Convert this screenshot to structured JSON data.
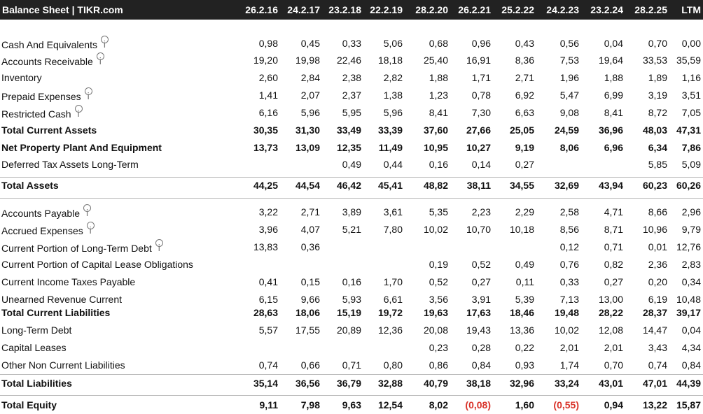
{
  "header": {
    "title": "Balance Sheet | TIKR.com",
    "columns": [
      "26.2.16",
      "24.2.17",
      "23.2.18",
      "22.2.19",
      "28.2.20",
      "26.2.21",
      "25.2.22",
      "24.2.23",
      "23.2.24",
      "28.2.25",
      "LTM"
    ]
  },
  "info_icon_glyph": "i",
  "colors": {
    "header_bg": "#222222",
    "negative": "#d9342b",
    "divider": "#bdbdbd"
  },
  "rows": [
    {
      "label": "Cash And Equivalents",
      "info": true,
      "bold": false,
      "values": [
        "0,98",
        "0,45",
        "0,33",
        "5,06",
        "0,68",
        "0,96",
        "0,43",
        "0,56",
        "0,04",
        "0,70",
        "0,00"
      ]
    },
    {
      "label": "Accounts Receivable",
      "info": true,
      "bold": false,
      "values": [
        "19,20",
        "19,98",
        "22,46",
        "18,18",
        "25,40",
        "16,91",
        "8,36",
        "7,53",
        "19,64",
        "33,53",
        "35,59"
      ]
    },
    {
      "label": "Inventory",
      "info": false,
      "bold": false,
      "values": [
        "2,60",
        "2,84",
        "2,38",
        "2,82",
        "1,88",
        "1,71",
        "2,71",
        "1,96",
        "1,88",
        "1,89",
        "1,16"
      ]
    },
    {
      "label": "Prepaid Expenses",
      "info": true,
      "bold": false,
      "values": [
        "1,41",
        "2,07",
        "2,37",
        "1,38",
        "1,23",
        "0,78",
        "6,92",
        "5,47",
        "6,99",
        "3,19",
        "3,51"
      ]
    },
    {
      "label": "Restricted Cash",
      "info": true,
      "bold": false,
      "values": [
        "6,16",
        "5,96",
        "5,95",
        "5,96",
        "8,41",
        "7,30",
        "6,63",
        "9,08",
        "8,41",
        "8,72",
        "7,05"
      ]
    },
    {
      "label": "Total Current Assets",
      "info": false,
      "bold": true,
      "values": [
        "30,35",
        "31,30",
        "33,49",
        "33,39",
        "37,60",
        "27,66",
        "25,05",
        "24,59",
        "36,96",
        "48,03",
        "47,31"
      ]
    },
    {
      "label": "Net Property Plant And Equipment",
      "info": false,
      "bold": true,
      "values": [
        "13,73",
        "13,09",
        "12,35",
        "11,49",
        "10,95",
        "10,27",
        "9,19",
        "8,06",
        "6,96",
        "6,34",
        "7,86"
      ]
    },
    {
      "label": "Deferred Tax Assets Long-Term",
      "info": false,
      "bold": false,
      "values": [
        "",
        "",
        "0,49",
        "0,44",
        "0,16",
        "0,14",
        "0,27",
        "",
        "",
        "5,85",
        "5,09"
      ]
    },
    {
      "label": "Total Assets",
      "info": false,
      "bold": true,
      "values": [
        "44,25",
        "44,54",
        "46,42",
        "45,41",
        "48,82",
        "38,11",
        "34,55",
        "32,69",
        "43,94",
        "60,23",
        "60,26"
      ]
    },
    {
      "label": "Accounts Payable",
      "info": true,
      "bold": false,
      "values": [
        "3,22",
        "2,71",
        "3,89",
        "3,61",
        "5,35",
        "2,23",
        "2,29",
        "2,58",
        "4,71",
        "8,66",
        "2,96"
      ]
    },
    {
      "label": "Accrued Expenses",
      "info": true,
      "bold": false,
      "values": [
        "3,96",
        "4,07",
        "5,21",
        "7,80",
        "10,02",
        "10,70",
        "10,18",
        "8,56",
        "8,71",
        "10,96",
        "9,79"
      ]
    },
    {
      "label": "Current Portion of Long-Term Debt",
      "info": true,
      "bold": false,
      "values": [
        "13,83",
        "0,36",
        "",
        "",
        "",
        "",
        "",
        "0,12",
        "0,71",
        "0,01",
        "12,76"
      ]
    },
    {
      "label": "Current Portion of Capital Lease Obligations",
      "info": false,
      "bold": false,
      "values": [
        "",
        "",
        "",
        "",
        "0,19",
        "0,52",
        "0,49",
        "0,76",
        "0,82",
        "2,36",
        "2,83"
      ]
    },
    {
      "label": "Current Income Taxes Payable",
      "info": false,
      "bold": false,
      "values": [
        "0,41",
        "0,15",
        "0,16",
        "1,70",
        "0,52",
        "0,27",
        "0,11",
        "0,33",
        "0,27",
        "0,20",
        "0,34"
      ]
    },
    {
      "label": "Unearned Revenue Current",
      "info": false,
      "bold": false,
      "values": [
        "6,15",
        "9,66",
        "5,93",
        "6,61",
        "3,56",
        "3,91",
        "5,39",
        "7,13",
        "13,00",
        "6,19",
        "10,48"
      ]
    },
    {
      "label": "Total Current Liabilities",
      "info": false,
      "bold": true,
      "values": [
        "28,63",
        "18,06",
        "15,19",
        "19,72",
        "19,63",
        "17,63",
        "18,46",
        "19,48",
        "28,22",
        "28,37",
        "39,17"
      ]
    },
    {
      "label": "Long-Term Debt",
      "info": false,
      "bold": false,
      "values": [
        "5,57",
        "17,55",
        "20,89",
        "12,36",
        "20,08",
        "19,43",
        "13,36",
        "10,02",
        "12,08",
        "14,47",
        "0,04"
      ]
    },
    {
      "label": "Capital Leases",
      "info": false,
      "bold": false,
      "values": [
        "",
        "",
        "",
        "",
        "0,23",
        "0,28",
        "0,22",
        "2,01",
        "2,01",
        "3,43",
        "4,34"
      ]
    },
    {
      "label": "Other Non Current Liabilities",
      "info": false,
      "bold": false,
      "values": [
        "0,74",
        "0,66",
        "0,71",
        "0,80",
        "0,86",
        "0,84",
        "0,93",
        "1,74",
        "0,70",
        "0,74",
        "0,84"
      ]
    },
    {
      "label": "Total Liabilities",
      "info": false,
      "bold": true,
      "values": [
        "35,14",
        "36,56",
        "36,79",
        "32,88",
        "40,79",
        "38,18",
        "32,96",
        "33,24",
        "43,01",
        "47,01",
        "44,39"
      ]
    },
    {
      "label": "Total Equity",
      "info": false,
      "bold": true,
      "values": [
        "9,11",
        "7,98",
        "9,63",
        "12,54",
        "8,02",
        "(0,08)",
        "1,60",
        "(0,55)",
        "0,94",
        "13,22",
        "15,87"
      ]
    }
  ]
}
